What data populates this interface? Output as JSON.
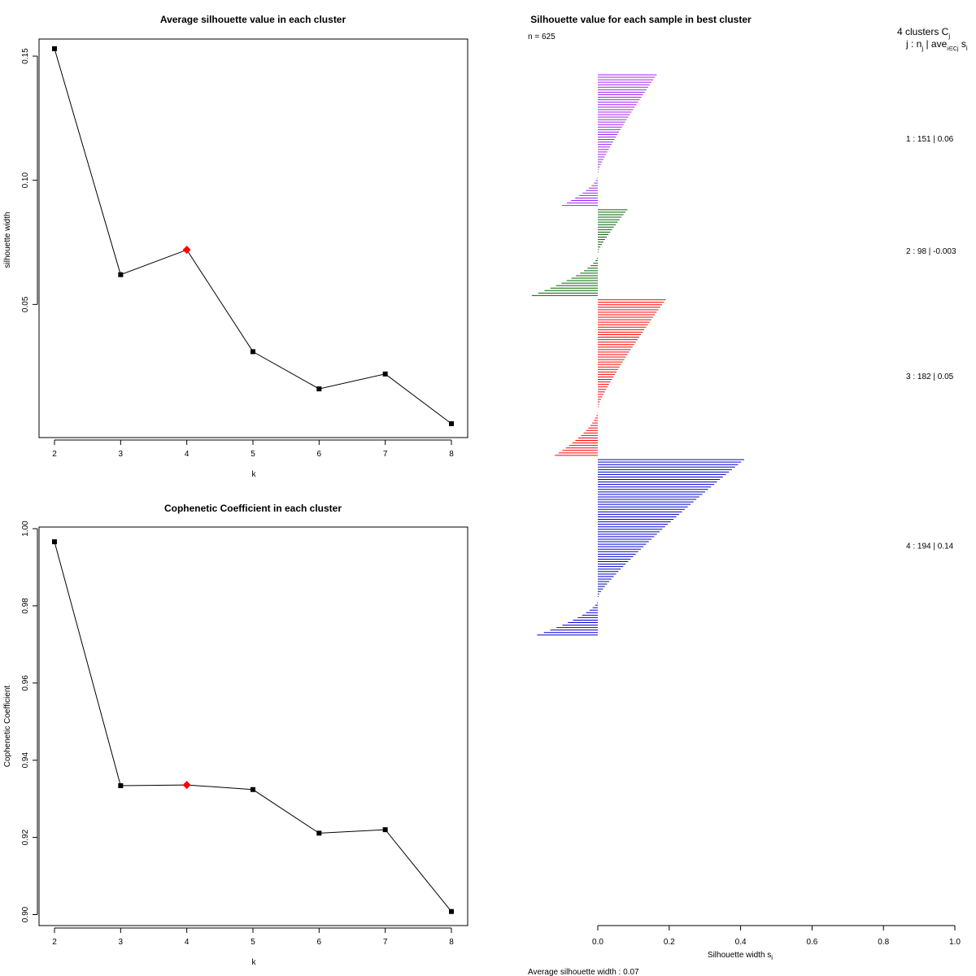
{
  "chart_data": [
    {
      "type": "line",
      "title": "Average silhouette value in each cluster",
      "xlabel": "k",
      "ylabel": "silhouette width",
      "x": [
        2,
        3,
        4,
        5,
        6,
        7,
        8
      ],
      "values": [
        0.153,
        0.062,
        0.072,
        0.031,
        0.016,
        0.022,
        0.002
      ],
      "highlight_x": 4,
      "highlight_color": "#ff0000",
      "xlim": [
        2,
        8
      ],
      "ylim": [
        0,
        0.16
      ],
      "x_ticks": [
        "2",
        "3",
        "4",
        "5",
        "6",
        "7",
        "8"
      ],
      "y_ticks": [
        {
          "value": 0.05,
          "label": "0.05"
        },
        {
          "value": 0.1,
          "label": "0.10"
        },
        {
          "value": 0.15,
          "label": "0.15"
        }
      ]
    },
    {
      "type": "line",
      "title": "Cophenetic Coefficient in each cluster",
      "xlabel": "k",
      "ylabel": "Cophenetic Coefficient",
      "x": [
        2,
        3,
        4,
        5,
        6,
        7,
        8
      ],
      "values": [
        0.9966,
        0.9334,
        0.9336,
        0.9324,
        0.9211,
        0.922,
        0.9008
      ],
      "highlight_x": 4,
      "highlight_color": "#ff0000",
      "xlim": [
        2,
        8
      ],
      "ylim": [
        0.9,
        1.0
      ],
      "x_ticks": [
        "2",
        "3",
        "4",
        "5",
        "6",
        "7",
        "8"
      ],
      "y_ticks": [
        {
          "value": 0.9,
          "label": "0.90"
        },
        {
          "value": 0.92,
          "label": "0.92"
        },
        {
          "value": 0.94,
          "label": "0.94"
        },
        {
          "value": 0.96,
          "label": "0.96"
        },
        {
          "value": 0.98,
          "label": "0.98"
        },
        {
          "value": 1.0,
          "label": "1.00"
        }
      ]
    },
    {
      "type": "bar",
      "orientation": "horizontal",
      "title": "Silhouette value for each sample in best cluster",
      "n_label": "n = 625",
      "header_line1": "4  clusters  C",
      "header_sub1": "j",
      "header_line2": "j :  n",
      "header_sub2a": "j",
      "header_mid": " | ave",
      "header_sub2b": "i∈Cj",
      "header_end": " s",
      "header_sub2c": "i",
      "xlabel": "Silhouette width s",
      "xlabel_sub": "i",
      "average_label": "Average silhouette width :  0.07",
      "xlim": [
        0,
        1
      ],
      "x_ticks": [
        "0.0",
        "0.2",
        "0.4",
        "0.6",
        "0.8",
        "1.0"
      ],
      "clusters": [
        {
          "id": 1,
          "color": "#a020f0",
          "max": 0.165,
          "min": -0.1,
          "pos_count": 40,
          "neg_count": 12,
          "label": "1 :   151  |  0.06"
        },
        {
          "id": 2,
          "color": "#006400",
          "max": 0.083,
          "min": -0.185,
          "pos_count": 18,
          "neg_count": 16,
          "label": "2 :   98  |  -0.003"
        },
        {
          "id": 3,
          "color": "#ff0000",
          "max": 0.19,
          "min": -0.12,
          "pos_count": 44,
          "neg_count": 18,
          "label": "3 :   182  |  0.05"
        },
        {
          "id": 4,
          "color": "#0000cd",
          "max": 0.41,
          "min": -0.17,
          "pos_count": 56,
          "neg_count": 14,
          "label": "4 :   194  |  0.14"
        }
      ]
    }
  ]
}
